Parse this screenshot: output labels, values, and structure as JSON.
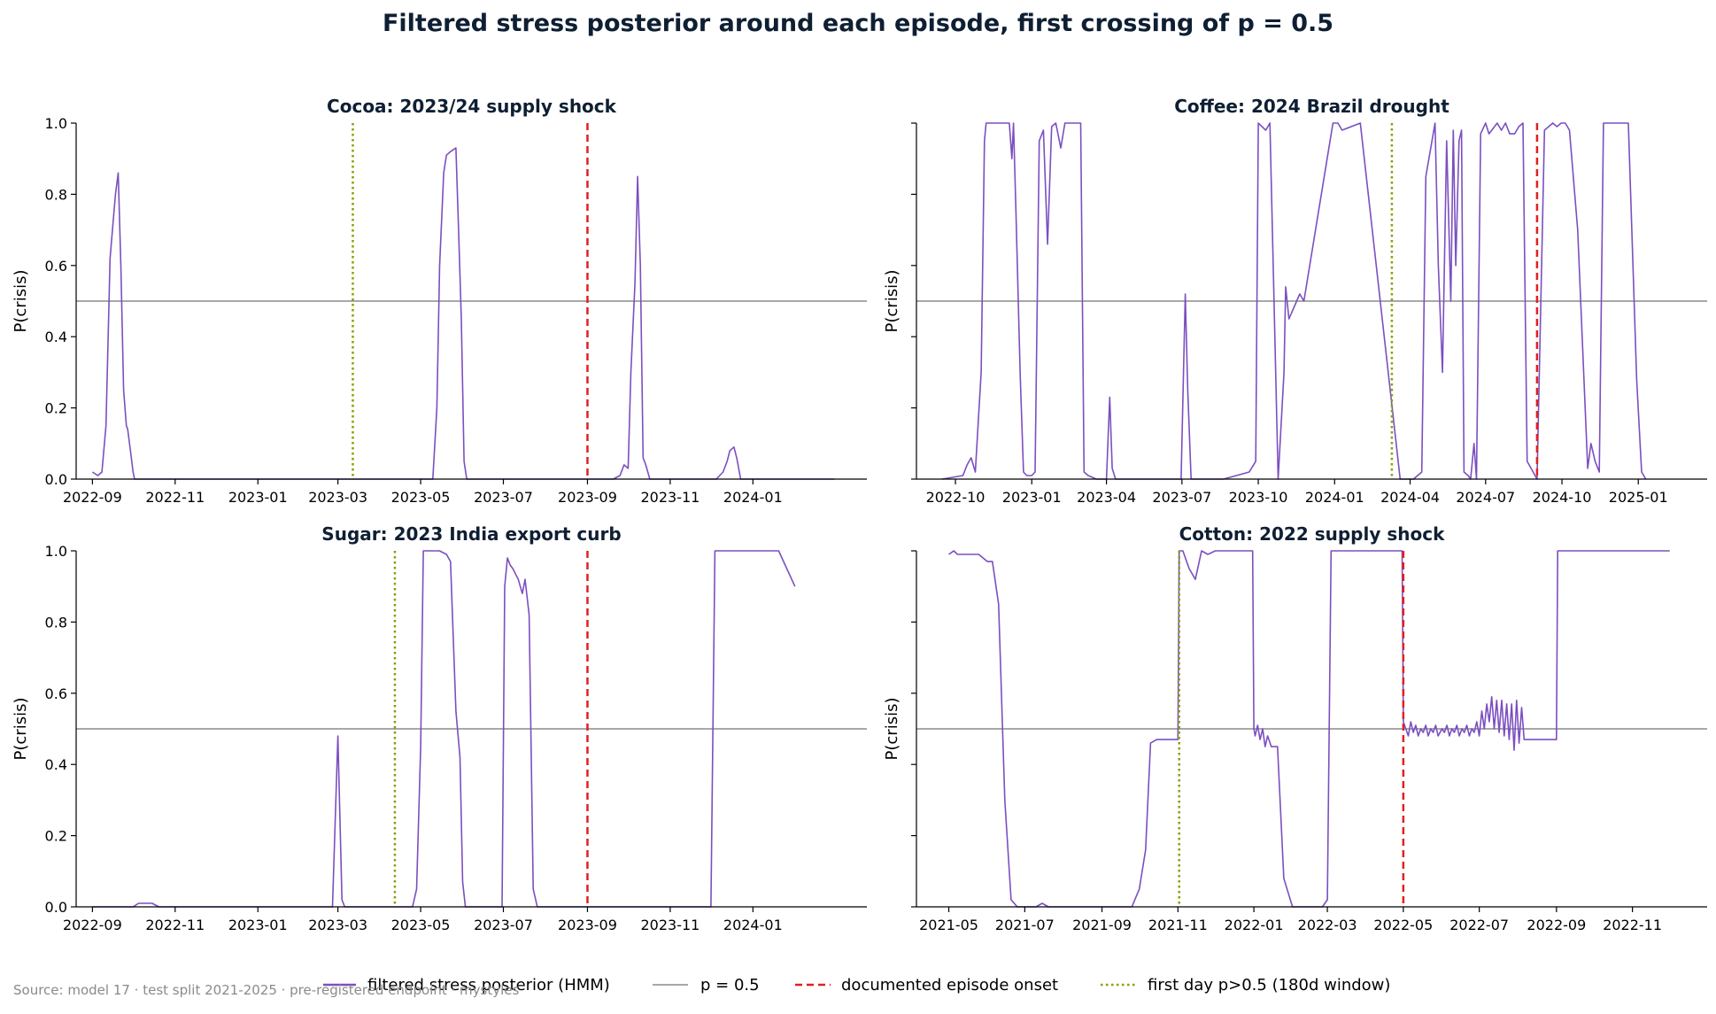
{
  "figure": {
    "title": "Filtered stress posterior around each episode, first crossing of p = 0.5",
    "source_note": "Source: model 17 · test split 2021-2025 · pre-registered endpoint · mystyles"
  },
  "colors": {
    "posterior": "#7b4fc0",
    "threshold": "#8c8c8c",
    "onset": "#e02020",
    "first_cross": "#88a000",
    "title": "#0f1f33"
  },
  "legend": [
    {
      "label": "filtered stress posterior (HMM)",
      "style": "solid",
      "color": "#7b4fc0"
    },
    {
      "label": "p = 0.5",
      "style": "thin",
      "color": "#8c8c8c"
    },
    {
      "label": "documented episode onset",
      "style": "dashed",
      "color": "#e02020"
    },
    {
      "label": "first day p>0.5 (180d window)",
      "style": "dotted",
      "color": "#88a000"
    }
  ],
  "chart_data": [
    {
      "type": "line",
      "title": "Cocoa: 2023/24 supply shock",
      "ylabel": "P(crisis)",
      "ylim": [
        0,
        1
      ],
      "yticks": [
        "0.0",
        "0.2",
        "0.4",
        "0.6",
        "0.8",
        "1.0"
      ],
      "xlim": [
        "2022-08-20",
        "2024-03-25"
      ],
      "xtick_dates": [
        "2022-09-01",
        "2022-11-01",
        "2023-01-01",
        "2023-03-01",
        "2023-05-01",
        "2023-07-01",
        "2023-09-01",
        "2023-11-01",
        "2024-01-01"
      ],
      "xtick_labels": [
        "2022-09",
        "2022-11",
        "2023-01",
        "2023-03",
        "2023-05",
        "2023-07",
        "2023-09",
        "2023-11",
        "2024-01"
      ],
      "threshold": 0.5,
      "onset": "2023-09-01",
      "first_cross": "2023-03-12",
      "series": {
        "x": [
          "2022-09-01",
          "2022-09-05",
          "2022-09-08",
          "2022-09-11",
          "2022-09-14",
          "2022-09-18",
          "2022-09-20",
          "2022-09-22",
          "2022-09-24",
          "2022-09-26",
          "2022-09-27",
          "2022-09-29",
          "2022-10-01",
          "2022-10-02",
          "2022-10-04",
          "2022-10-06",
          "2022-10-08",
          "2022-10-10",
          "2023-05-10",
          "2023-05-13",
          "2023-05-15",
          "2023-05-18",
          "2023-05-20",
          "2023-05-23",
          "2023-05-27",
          "2023-05-29",
          "2023-05-31",
          "2023-06-02",
          "2023-06-04",
          "2023-06-07",
          "2023-06-10",
          "2023-09-20",
          "2023-09-25",
          "2023-09-28",
          "2023-10-01",
          "2023-10-03",
          "2023-10-06",
          "2023-10-08",
          "2023-10-10",
          "2023-10-12",
          "2023-10-14",
          "2023-10-17",
          "2023-10-21",
          "2023-12-05",
          "2023-12-10",
          "2023-12-13",
          "2023-12-15",
          "2023-12-18",
          "2023-12-20",
          "2023-12-23",
          "2024-03-01"
        ],
        "y": [
          0.02,
          0.01,
          0.02,
          0.15,
          0.62,
          0.8,
          0.86,
          0.6,
          0.25,
          0.15,
          0.14,
          0.08,
          0.02,
          0.0,
          0.0,
          0.0,
          0.0,
          0.0,
          0.0,
          0.2,
          0.6,
          0.86,
          0.91,
          0.92,
          0.93,
          0.7,
          0.45,
          0.05,
          0.0,
          0.0,
          0.0,
          0.0,
          0.01,
          0.04,
          0.03,
          0.3,
          0.55,
          0.85,
          0.6,
          0.06,
          0.04,
          0.0,
          0.0,
          0.0,
          0.02,
          0.05,
          0.08,
          0.09,
          0.06,
          0.0,
          0.0
        ]
      }
    },
    {
      "type": "line",
      "title": "Coffee: 2024 Brazil drought",
      "ylabel": "P(crisis)",
      "ylim": [
        0,
        1
      ],
      "yticks": [
        "0.0",
        "0.2",
        "0.4",
        "0.6",
        "0.8",
        "1.0"
      ],
      "xlim": [
        "2022-08-15",
        "2025-03-25"
      ],
      "xtick_dates": [
        "2022-10-01",
        "2023-01-01",
        "2023-04-01",
        "2023-07-01",
        "2023-10-01",
        "2024-01-01",
        "2024-04-01",
        "2024-07-01",
        "2024-10-01",
        "2025-01-01"
      ],
      "xtick_labels": [
        "2022-10",
        "2023-01",
        "2023-04",
        "2023-07",
        "2023-10",
        "2024-01",
        "2024-04",
        "2024-07",
        "2024-10",
        "2025-01"
      ],
      "threshold": 0.5,
      "onset": "2024-09-01",
      "first_cross": "2024-03-10",
      "series": {
        "x": [
          "2022-09-15",
          "2022-10-10",
          "2022-10-15",
          "2022-10-20",
          "2022-10-25",
          "2022-11-01",
          "2022-11-05",
          "2022-11-07",
          "2022-11-12",
          "2022-12-05",
          "2022-12-08",
          "2022-12-10",
          "2022-12-13",
          "2022-12-18",
          "2022-12-22",
          "2022-12-26",
          "2023-01-01",
          "2023-01-05",
          "2023-01-10",
          "2023-01-15",
          "2023-01-20",
          "2023-01-25",
          "2023-01-30",
          "2023-02-05",
          "2023-02-10",
          "2023-02-15",
          "2023-02-20",
          "2023-03-01",
          "2023-03-05",
          "2023-03-10",
          "2023-03-20",
          "2023-04-01",
          "2023-04-05",
          "2023-04-08",
          "2023-04-12",
          "2023-04-20",
          "2023-05-10",
          "2023-06-30",
          "2023-07-05",
          "2023-07-08",
          "2023-07-12",
          "2023-08-20",
          "2023-09-20",
          "2023-09-28",
          "2023-10-01",
          "2023-10-10",
          "2023-10-15",
          "2023-10-25",
          "2023-11-01",
          "2023-11-03",
          "2023-11-07",
          "2023-11-20",
          "2023-11-25",
          "2023-12-30",
          "2024-01-05",
          "2024-01-10",
          "2024-02-01",
          "2024-03-20",
          "2024-04-05",
          "2024-04-15",
          "2024-04-20",
          "2024-05-01",
          "2024-05-05",
          "2024-05-10",
          "2024-05-15",
          "2024-05-20",
          "2024-05-23",
          "2024-05-26",
          "2024-05-30",
          "2024-06-02",
          "2024-06-05",
          "2024-06-10",
          "2024-06-13",
          "2024-06-17",
          "2024-06-20",
          "2024-06-25",
          "2024-07-01",
          "2024-07-05",
          "2024-07-15",
          "2024-07-20",
          "2024-07-25",
          "2024-07-30",
          "2024-08-05",
          "2024-08-10",
          "2024-08-15",
          "2024-08-20",
          "2024-09-01",
          "2024-09-10",
          "2024-09-15",
          "2024-09-20",
          "2024-09-25",
          "2024-09-30",
          "2024-10-05",
          "2024-10-10",
          "2024-10-20",
          "2024-11-01",
          "2024-11-05",
          "2024-11-10",
          "2024-11-15",
          "2024-11-20",
          "2024-12-01",
          "2024-12-20",
          "2024-12-30",
          "2025-01-05",
          "2025-01-10"
        ],
        "y": [
          0.0,
          0.01,
          0.04,
          0.06,
          0.02,
          0.3,
          0.95,
          1.0,
          1.0,
          1.0,
          0.9,
          1.0,
          0.75,
          0.3,
          0.02,
          0.01,
          0.01,
          0.02,
          0.95,
          0.98,
          0.66,
          0.99,
          1.0,
          0.93,
          1.0,
          1.0,
          1.0,
          1.0,
          0.02,
          0.01,
          0.0,
          0.0,
          0.23,
          0.03,
          0.0,
          0.0,
          0.0,
          0.0,
          0.52,
          0.25,
          0.0,
          0.0,
          0.02,
          0.05,
          1.0,
          0.98,
          1.0,
          0.0,
          0.3,
          0.54,
          0.45,
          0.52,
          0.5,
          1.0,
          1.0,
          0.98,
          1.0,
          0.0,
          0.0,
          0.02,
          0.85,
          1.0,
          0.6,
          0.3,
          0.95,
          0.5,
          0.98,
          0.6,
          0.95,
          0.98,
          0.02,
          0.01,
          0.0,
          0.1,
          0.0,
          0.97,
          1.0,
          0.97,
          1.0,
          0.98,
          1.0,
          0.97,
          0.97,
          0.99,
          1.0,
          0.05,
          0.0,
          0.98,
          0.99,
          1.0,
          0.99,
          1.0,
          1.0,
          0.98,
          0.7,
          0.03,
          0.1,
          0.05,
          0.02,
          1.0,
          1.0,
          1.0,
          0.28,
          0.02,
          0.0
        ]
      }
    },
    {
      "type": "line",
      "title": "Sugar: 2023 India export curb",
      "ylabel": "P(crisis)",
      "ylim": [
        0,
        1
      ],
      "yticks": [
        "0.0",
        "0.2",
        "0.4",
        "0.6",
        "0.8",
        "1.0"
      ],
      "xlim": [
        "2022-08-20",
        "2024-03-25"
      ],
      "xtick_dates": [
        "2022-09-01",
        "2022-11-01",
        "2023-01-01",
        "2023-03-01",
        "2023-05-01",
        "2023-07-01",
        "2023-09-01",
        "2023-11-01",
        "2024-01-01"
      ],
      "xtick_labels": [
        "2022-09",
        "2022-11",
        "2023-01",
        "2023-03",
        "2023-05",
        "2023-07",
        "2023-09",
        "2023-11",
        "2024-01"
      ],
      "threshold": 0.5,
      "onset": "2023-09-01",
      "first_cross": "2023-04-12",
      "series": {
        "x": [
          "2022-09-01",
          "2022-10-01",
          "2022-10-05",
          "2022-10-15",
          "2022-10-20",
          "2022-11-01",
          "2023-02-25",
          "2023-03-01",
          "2023-03-04",
          "2023-03-06",
          "2023-03-09",
          "2023-04-25",
          "2023-04-28",
          "2023-05-01",
          "2023-05-03",
          "2023-05-06",
          "2023-05-15",
          "2023-05-20",
          "2023-05-23",
          "2023-05-27",
          "2023-05-30",
          "2023-06-01",
          "2023-06-03",
          "2023-06-30",
          "2023-07-02",
          "2023-07-04",
          "2023-07-06",
          "2023-07-08",
          "2023-07-12",
          "2023-07-15",
          "2023-07-17",
          "2023-07-20",
          "2023-07-23",
          "2023-07-26",
          "2023-07-30",
          "2023-12-01",
          "2023-12-04",
          "2023-12-07",
          "2024-01-20",
          "2024-02-01"
        ],
        "y": [
          0.0,
          0.0,
          0.01,
          0.01,
          0.0,
          0.0,
          0.0,
          0.48,
          0.02,
          0.0,
          0.0,
          0.0,
          0.05,
          0.45,
          1.0,
          1.0,
          1.0,
          0.99,
          0.97,
          0.55,
          0.42,
          0.07,
          0.0,
          0.0,
          0.9,
          0.98,
          0.96,
          0.95,
          0.92,
          0.88,
          0.92,
          0.82,
          0.05,
          0.0,
          0.0,
          0.0,
          1.0,
          1.0,
          1.0,
          0.9
        ]
      }
    },
    {
      "type": "line",
      "title": "Cotton: 2022 supply shock",
      "ylabel": "P(crisis)",
      "ylim": [
        0,
        1
      ],
      "yticks": [
        "0.0",
        "0.2",
        "0.4",
        "0.6",
        "0.8",
        "1.0"
      ],
      "xlim": [
        "2021-04-05",
        "2022-12-31"
      ],
      "xtick_dates": [
        "2021-05-01",
        "2021-07-01",
        "2021-09-01",
        "2021-11-01",
        "2022-01-01",
        "2022-03-01",
        "2022-05-01",
        "2022-07-01",
        "2022-09-01",
        "2022-11-01"
      ],
      "xtick_labels": [
        "2021-05",
        "2021-07",
        "2021-09",
        "2021-11",
        "2022-01",
        "2022-03",
        "2022-05",
        "2022-07",
        "2022-09",
        "2022-11"
      ],
      "threshold": 0.5,
      "onset": "2022-05-01",
      "first_cross": "2021-11-02",
      "series": {
        "x": [
          "2021-05-01",
          "2021-05-05",
          "2021-05-08",
          "2021-05-15",
          "2021-05-25",
          "2021-06-01",
          "2021-06-05",
          "2021-06-10",
          "2021-06-15",
          "2021-06-20",
          "2021-06-25",
          "2021-07-10",
          "2021-07-15",
          "2021-07-20",
          "2021-08-01",
          "2021-09-25",
          "2021-10-01",
          "2021-10-06",
          "2021-10-10",
          "2021-10-15",
          "2021-11-01",
          "2021-11-02",
          "2021-11-05",
          "2021-11-10",
          "2021-11-15",
          "2021-11-20",
          "2021-11-25",
          "2021-12-01",
          "2021-12-05",
          "2021-12-10",
          "2021-12-31",
          "2022-01-01",
          "2022-01-02",
          "2022-01-04",
          "2022-01-06",
          "2022-01-08",
          "2022-01-10",
          "2022-01-12",
          "2022-01-14",
          "2022-01-15",
          "2022-01-16",
          "2022-01-20",
          "2022-01-25",
          "2022-02-01",
          "2022-02-10",
          "2022-02-25",
          "2022-03-01",
          "2022-03-04",
          "2022-03-08",
          "2022-03-15",
          "2022-04-30",
          "2022-05-01",
          "2022-05-03",
          "2022-05-05",
          "2022-05-07",
          "2022-05-09",
          "2022-05-11",
          "2022-05-13",
          "2022-05-15",
          "2022-05-17",
          "2022-05-19",
          "2022-05-21",
          "2022-05-23",
          "2022-05-25",
          "2022-05-27",
          "2022-05-29",
          "2022-06-01",
          "2022-06-03",
          "2022-06-05",
          "2022-06-07",
          "2022-06-09",
          "2022-06-11",
          "2022-06-13",
          "2022-06-15",
          "2022-06-17",
          "2022-06-19",
          "2022-06-21",
          "2022-06-23",
          "2022-06-25",
          "2022-06-27",
          "2022-06-29",
          "2022-07-01",
          "2022-07-03",
          "2022-07-05",
          "2022-07-07",
          "2022-07-09",
          "2022-07-11",
          "2022-07-13",
          "2022-07-15",
          "2022-07-17",
          "2022-07-19",
          "2022-07-21",
          "2022-07-23",
          "2022-07-25",
          "2022-07-27",
          "2022-07-29",
          "2022-07-31",
          "2022-08-02",
          "2022-08-04",
          "2022-08-06",
          "2022-08-08",
          "2022-08-10",
          "2022-08-12",
          "2022-08-15",
          "2022-09-01",
          "2022-09-02",
          "2022-12-01"
        ],
        "y": [
          0.99,
          1.0,
          0.99,
          0.99,
          0.99,
          0.97,
          0.97,
          0.85,
          0.3,
          0.02,
          0.0,
          0.0,
          0.01,
          0.0,
          0.0,
          0.0,
          0.05,
          0.16,
          0.46,
          0.47,
          0.47,
          1.0,
          1.0,
          0.95,
          0.92,
          1.0,
          0.99,
          1.0,
          1.0,
          1.0,
          1.0,
          0.5,
          0.48,
          0.51,
          0.47,
          0.5,
          0.45,
          0.48,
          0.46,
          0.45,
          0.45,
          0.45,
          0.08,
          0.0,
          0.0,
          0.0,
          0.02,
          1.0,
          1.0,
          1.0,
          1.0,
          0.52,
          0.5,
          0.48,
          0.52,
          0.49,
          0.51,
          0.48,
          0.5,
          0.49,
          0.51,
          0.48,
          0.5,
          0.49,
          0.51,
          0.48,
          0.5,
          0.49,
          0.51,
          0.48,
          0.5,
          0.49,
          0.51,
          0.48,
          0.5,
          0.49,
          0.51,
          0.48,
          0.5,
          0.49,
          0.52,
          0.48,
          0.55,
          0.5,
          0.57,
          0.52,
          0.59,
          0.5,
          0.58,
          0.49,
          0.58,
          0.48,
          0.57,
          0.47,
          0.57,
          0.44,
          0.58,
          0.46,
          0.56,
          0.47,
          0.47,
          0.47,
          0.47,
          0.47,
          0.47,
          1.0,
          1.0
        ]
      }
    }
  ]
}
